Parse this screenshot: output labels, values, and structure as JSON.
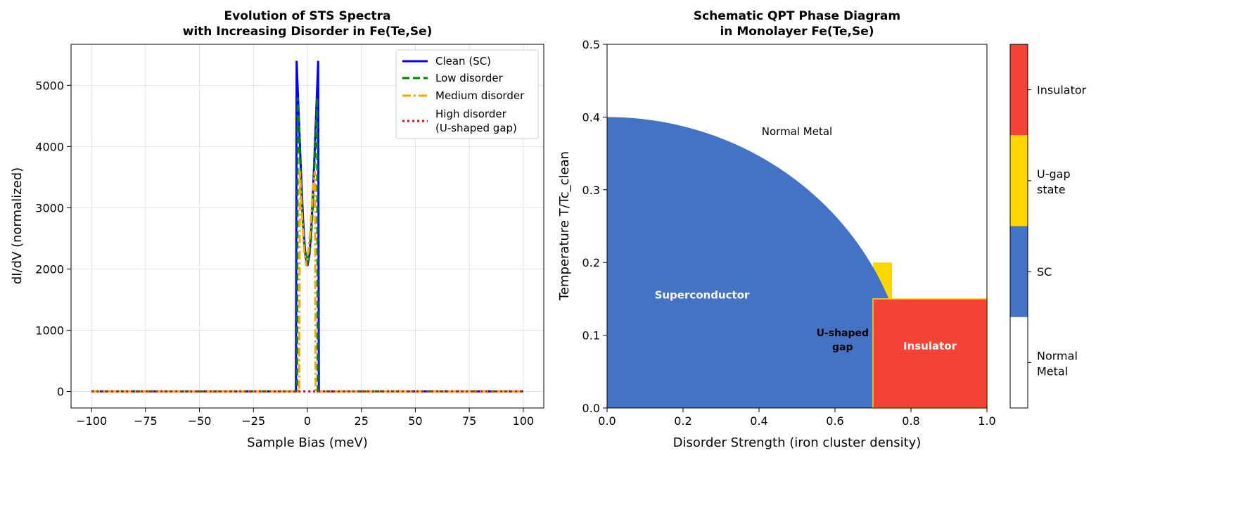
{
  "chart_data": [
    {
      "type": "line",
      "title": [
        "Evolution of STS Spectra",
        "with Increasing Disorder in Fe(Te,Se)"
      ],
      "xlabel": "Sample Bias (meV)",
      "ylabel": "dI/dV (normalized)",
      "xlim": [
        -109.5,
        109.5
      ],
      "ylim": [
        -270,
        5670
      ],
      "xticks": [
        -100,
        -75,
        -50,
        -25,
        0,
        25,
        50,
        75,
        100
      ],
      "xtick_labels": [
        "−100",
        "−75",
        "−50",
        "−25",
        "0",
        "25",
        "50",
        "75",
        "100"
      ],
      "yticks": [
        0,
        1000,
        2000,
        3000,
        4000,
        5000
      ],
      "grid": true,
      "legend_position": "top-right",
      "series": [
        {
          "name": "Clean (SC)",
          "color": "#0000FF",
          "style": "solid",
          "points": [
            [
              -100,
              0
            ],
            [
              -5.3,
              0
            ],
            [
              -5,
              5400
            ],
            [
              -4,
              4500
            ],
            [
              -3,
              3600
            ],
            [
              -2,
              2800
            ],
            [
              -1,
              2250
            ],
            [
              0,
              2050
            ],
            [
              1,
              2250
            ],
            [
              2,
              2800
            ],
            [
              3,
              3600
            ],
            [
              4,
              4500
            ],
            [
              5,
              5400
            ],
            [
              5.3,
              0
            ],
            [
              100,
              0
            ]
          ]
        },
        {
          "name": "Low disorder",
          "color": "#008000",
          "style": "dashed",
          "points": [
            [
              -100,
              0
            ],
            [
              -4.8,
              0
            ],
            [
              -4.5,
              4800
            ],
            [
              -3.5,
              3900
            ],
            [
              -2.5,
              3000
            ],
            [
              -1.5,
              2400
            ],
            [
              0,
              2100
            ],
            [
              1.5,
              2400
            ],
            [
              2.5,
              3000
            ],
            [
              3.5,
              3900
            ],
            [
              4.5,
              4800
            ],
            [
              4.8,
              0
            ],
            [
              100,
              0
            ]
          ]
        },
        {
          "name": "Medium disorder",
          "color": "#FFA500",
          "style": "dashdot",
          "points": [
            [
              -100,
              0
            ],
            [
              -3.8,
              0
            ],
            [
              -3.5,
              3600
            ],
            [
              -2.5,
              2900
            ],
            [
              -1.5,
              2300
            ],
            [
              -0.5,
              2050
            ],
            [
              0.5,
              2300
            ],
            [
              1.5,
              2700
            ],
            [
              2.5,
              3300
            ],
            [
              3.5,
              3600
            ],
            [
              3.8,
              0
            ],
            [
              100,
              0
            ]
          ]
        },
        {
          "name": "High disorder\n(U-shaped gap)",
          "color": "#FF0000",
          "style": "dotted",
          "points": [
            [
              -100,
              0
            ],
            [
              100,
              0
            ]
          ]
        }
      ]
    },
    {
      "type": "heatmap",
      "title": [
        "Schematic QPT Phase Diagram",
        "in Monolayer Fe(Te,Se)"
      ],
      "xlabel": "Disorder Strength (iron cluster density)",
      "ylabel": "Temperature T/Tc_clean",
      "xlim": [
        0,
        1
      ],
      "ylim": [
        0,
        0.5
      ],
      "xticks": [
        0,
        0.2,
        0.4,
        0.6,
        0.8,
        1.0
      ],
      "xtick_labels": [
        "0.0",
        "0.2",
        "0.4",
        "0.6",
        "0.8",
        "1.0"
      ],
      "yticks": [
        0,
        0.1,
        0.2,
        0.3,
        0.4,
        0.5
      ],
      "ytick_labels": [
        "0.0",
        "0.1",
        "0.2",
        "0.3",
        "0.4",
        "0.5"
      ],
      "regions": {
        "sc_boundary": "T = 0.4*sqrt(1-(d/0.8)^2)",
        "ugap_box": {
          "d": [
            0.7,
            0.75
          ],
          "T": [
            0,
            0.2
          ]
        },
        "insulator_box": {
          "d": [
            0.7,
            1.0
          ],
          "T": [
            0,
            0.15
          ]
        }
      },
      "annotations": [
        {
          "text": "Normal Metal",
          "x": 0.5,
          "y": 0.38,
          "color": "#000000",
          "bold": false
        },
        {
          "text": "Superconductor",
          "x": 0.25,
          "y": 0.155,
          "color": "#FFFFFF",
          "bold": true
        },
        {
          "text": [
            "U-shaped",
            "gap"
          ],
          "x": 0.62,
          "y": 0.095,
          "color": "#000000",
          "bold": true
        },
        {
          "text": "Insulator",
          "x": 0.85,
          "y": 0.085,
          "color": "#FFFFFF",
          "bold": true
        }
      ],
      "colorbar": [
        {
          "label": [
            "Normal",
            "Metal"
          ],
          "color": "#FFFFFF"
        },
        {
          "label": [
            "SC"
          ],
          "color": "#4472C4"
        },
        {
          "label": [
            "U-gap",
            "state"
          ],
          "color": "#FFD700"
        },
        {
          "label": [
            "Insulator"
          ],
          "color": "#F44336"
        }
      ]
    }
  ]
}
